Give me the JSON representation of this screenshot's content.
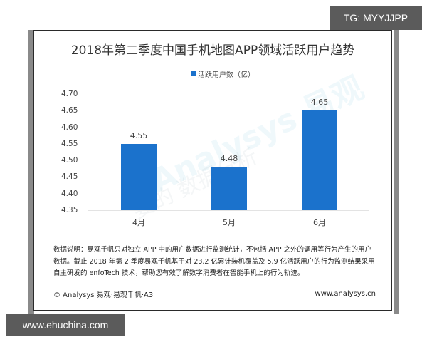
{
  "chart_data": {
    "type": "bar",
    "title": "2018年第二季度中国手机地图APP领域活跃用户趋势",
    "categories": [
      "4月",
      "5月",
      "6月"
    ],
    "series": [
      {
        "name": "活跃用户数（亿）",
        "values": [
          4.55,
          4.48,
          4.65
        ],
        "color": "#1b72cc"
      }
    ],
    "value_labels": [
      "4.55",
      "4.48",
      "4.65"
    ],
    "xlabel": "",
    "ylabel": "",
    "ylim": [
      4.35,
      4.7
    ],
    "yticks": [
      "4.70",
      "4.65",
      "4.60",
      "4.55",
      "4.50",
      "4.45",
      "4.40",
      "4.35"
    ],
    "legend_position": "top",
    "grid": false
  },
  "legend": {
    "label": "活跃用户数（亿）",
    "color": "#1b72cc"
  },
  "note": {
    "line1": "数据说明：易观千帆只对独立 APP 中的用户数据进行监测统计，不包括 APP 之外的调用等行为产生的用户",
    "line2": "数据。截止 2018 年第 2 季度易观千帆基于对 23.2 亿累计装机覆盖及 5.9 亿活跃用户的行为监测结果采用",
    "line3": "自主研发的 enfoTech 技术，帮助您有效了解数字消费者在智能手机上的行为轨迹。"
  },
  "footer": {
    "left": "© Analysys 易观·易观千帆·A3",
    "right": "www.analysys.cn"
  },
  "watermark": {
    "text1": "Analysys 易观",
    "text2": "要的 数据分析"
  },
  "overlay_tags": {
    "top_right": "TG: MYYJJPP",
    "bottom_left": "www.ehuchina.com"
  }
}
